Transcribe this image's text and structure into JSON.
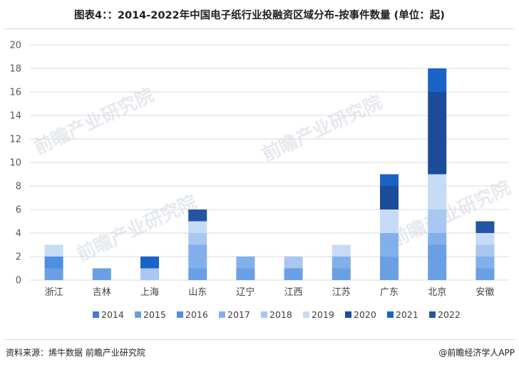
{
  "title": "图表4：：2014-2022年中国电子纸行业投融资区域分布-按事件数量 (单位：起)",
  "source": "资料来源：烯牛数据 前瞻产业研究院",
  "brand": "@前瞻经济学人APP",
  "watermark": "前瞻产业研究院",
  "chart_data": {
    "type": "bar",
    "stacked": true,
    "categories": [
      "浙江",
      "吉林",
      "上海",
      "山东",
      "辽宁",
      "江西",
      "江苏",
      "广东",
      "北京",
      "安徽"
    ],
    "ylim": [
      0,
      20
    ],
    "yticks": [
      0,
      2,
      4,
      6,
      8,
      10,
      12,
      14,
      16,
      18,
      20
    ],
    "grid": true,
    "legend_position": "bottom",
    "series": [
      {
        "name": "2014",
        "color": "#3a7fd5",
        "values": [
          0,
          0,
          0,
          0,
          0,
          0,
          0,
          0,
          0,
          0
        ]
      },
      {
        "name": "2015",
        "color": "#6a9fe3",
        "values": [
          1,
          1,
          0,
          1,
          1,
          1,
          1,
          2,
          3,
          1
        ]
      },
      {
        "name": "2016",
        "color": "#4d8fe0",
        "values": [
          1,
          0,
          0,
          0,
          0,
          0,
          0,
          0,
          0,
          0
        ]
      },
      {
        "name": "2017",
        "color": "#82b0ea",
        "values": [
          0,
          0,
          0,
          2,
          1,
          0,
          1,
          2,
          1,
          1
        ]
      },
      {
        "name": "2018",
        "color": "#a9c7f0",
        "values": [
          0,
          0,
          1,
          1,
          0,
          1,
          0,
          0,
          2,
          1
        ]
      },
      {
        "name": "2019",
        "color": "#c6dbf6",
        "values": [
          1,
          0,
          0,
          1,
          0,
          0,
          1,
          2,
          3,
          1
        ]
      },
      {
        "name": "2020",
        "color": "#1c4c9a",
        "values": [
          0,
          0,
          0,
          0,
          0,
          0,
          0,
          2,
          7,
          0
        ]
      },
      {
        "name": "2021",
        "color": "#1a63c6",
        "values": [
          0,
          0,
          1,
          0,
          0,
          0,
          0,
          1,
          2,
          0
        ]
      },
      {
        "name": "2022",
        "color": "#2454a4",
        "values": [
          0,
          0,
          0,
          1,
          0,
          0,
          0,
          0,
          0,
          1
        ]
      }
    ]
  }
}
